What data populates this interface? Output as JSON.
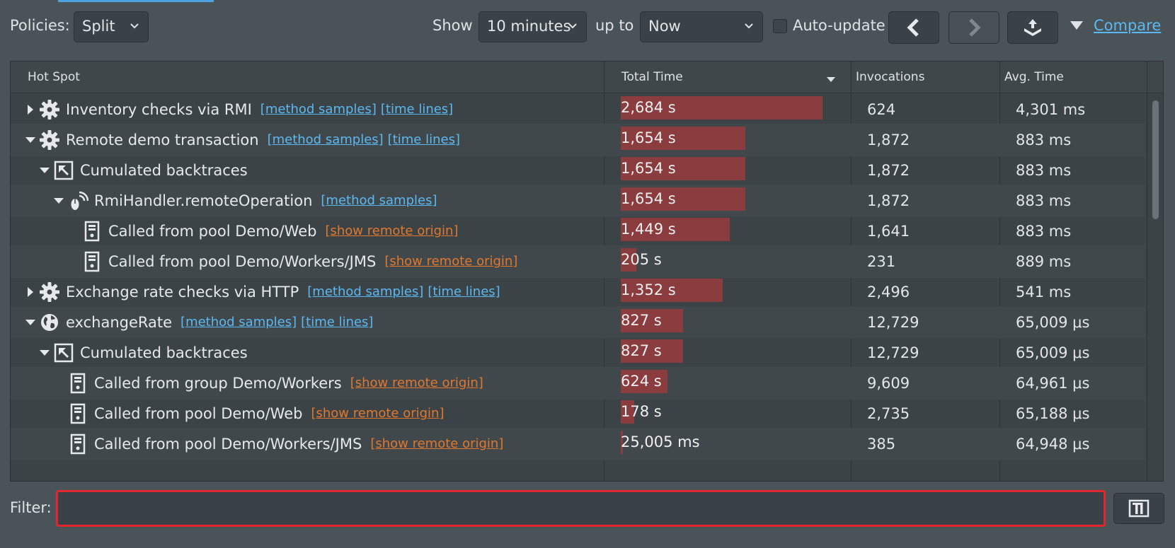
{
  "toolbar": {
    "policies_label": "Policies:",
    "policies_value": "Split",
    "show_label": "Show",
    "show_value": "10 minutes",
    "upto_label": "up to",
    "upto_value": "Now",
    "autoupdate_label": "Auto-update",
    "compare_link": "Compare"
  },
  "table": {
    "headers": [
      "Hot Spot",
      "Total Time",
      "Invocations",
      "Avg. Time"
    ],
    "sort_column": "Total Time",
    "max_total_s": 2684,
    "rows": [
      {
        "level": 0,
        "toggle": "collapsed",
        "icon": "gear-icon",
        "name": "Inventory checks via RMI",
        "links": [
          "[method samples]",
          "[time lines]"
        ],
        "link_color": "blue",
        "total": "2,684 s",
        "total_s": 2684,
        "invocations": "624",
        "avg": "4,301 ms"
      },
      {
        "level": 0,
        "toggle": "expanded",
        "icon": "gear-icon",
        "name": "Remote demo transaction",
        "links": [
          "[method samples]",
          "[time lines]"
        ],
        "link_color": "blue",
        "total": "1,654 s",
        "total_s": 1654,
        "invocations": "1,872",
        "avg": "883 ms"
      },
      {
        "level": 1,
        "toggle": "expanded",
        "icon": "backtrace-icon",
        "name": "Cumulated backtraces",
        "links": [],
        "link_color": "blue",
        "total": "1,654 s",
        "total_s": 1654,
        "invocations": "1,872",
        "avg": "883 ms"
      },
      {
        "level": 2,
        "toggle": "expanded",
        "icon": "rmi-handler-icon",
        "name": "RmiHandler.remoteOperation",
        "links": [
          "[method samples]"
        ],
        "link_color": "blue",
        "total": "1,654 s",
        "total_s": 1654,
        "invocations": "1,872",
        "avg": "883 ms"
      },
      {
        "level": 3,
        "toggle": "none",
        "icon": "server-icon",
        "name": "Called from pool Demo/Web",
        "links": [
          "[show remote origin]"
        ],
        "link_color": "orange",
        "total": "1,449 s",
        "total_s": 1449,
        "invocations": "1,641",
        "avg": "883 ms"
      },
      {
        "level": 3,
        "toggle": "none",
        "icon": "server-icon",
        "name": "Called from pool Demo/Workers/JMS",
        "links": [
          "[show remote origin]"
        ],
        "link_color": "orange",
        "total": "205 s",
        "total_s": 205,
        "invocations": "231",
        "avg": "889 ms"
      },
      {
        "level": 0,
        "toggle": "collapsed",
        "icon": "gear-icon",
        "name": "Exchange rate checks via HTTP",
        "links": [
          "[method samples]",
          "[time lines]"
        ],
        "link_color": "blue",
        "total": "1,352 s",
        "total_s": 1352,
        "invocations": "2,496",
        "avg": "541 ms"
      },
      {
        "level": 0,
        "toggle": "expanded",
        "icon": "globe-icon",
        "name": "exchangeRate",
        "links": [
          "[method samples]",
          "[time lines]"
        ],
        "link_color": "blue",
        "total": "827 s",
        "total_s": 827,
        "invocations": "12,729",
        "avg": "65,009 μs"
      },
      {
        "level": 1,
        "toggle": "expanded",
        "icon": "backtrace-icon",
        "name": "Cumulated backtraces",
        "links": [],
        "link_color": "blue",
        "total": "827 s",
        "total_s": 827,
        "invocations": "12,729",
        "avg": "65,009 μs"
      },
      {
        "level": 2,
        "toggle": "none",
        "icon": "server-icon",
        "name": "Called from group Demo/Workers",
        "links": [
          "[show remote origin]"
        ],
        "link_color": "orange",
        "total": "624 s",
        "total_s": 624,
        "invocations": "9,609",
        "avg": "64,961 μs"
      },
      {
        "level": 2,
        "toggle": "none",
        "icon": "server-icon",
        "name": "Called from pool Demo/Web",
        "links": [
          "[show remote origin]"
        ],
        "link_color": "orange",
        "total": "178 s",
        "total_s": 178,
        "invocations": "2,735",
        "avg": "65,188 μs"
      },
      {
        "level": 2,
        "toggle": "none",
        "icon": "server-icon",
        "name": "Called from pool Demo/Workers/JMS",
        "links": [
          "[show remote origin]"
        ],
        "link_color": "orange",
        "total": "25,005 ms",
        "total_s": 25.005,
        "invocations": "385",
        "avg": "64,948 μs"
      }
    ]
  },
  "filter": {
    "label": "Filter:",
    "value": ""
  },
  "colors": {
    "bar": "#8b3c3e",
    "link_blue": "#5cb8f0",
    "link_orange": "#e0782e",
    "filter_border": "#e3262b"
  }
}
